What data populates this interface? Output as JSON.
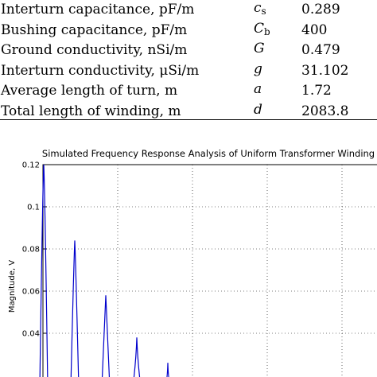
{
  "table": {
    "rows": [
      {
        "label": "Interturn capacitance, pF/m",
        "symbol": "c",
        "subscript": "s",
        "value": "0.289"
      },
      {
        "label": "Bushing capacitance, pF/m",
        "symbol": "C",
        "subscript": "b",
        "value": "400"
      },
      {
        "label": "Ground conductivity, nSi/m",
        "symbol": "G",
        "subscript": "",
        "value": "0.479"
      },
      {
        "label": "Interturn conductivity, μSi/m",
        "symbol": "g",
        "subscript": "",
        "value": "31.102"
      },
      {
        "label": "Average length of turn, m",
        "symbol": "a",
        "subscript": "",
        "value": "1.72"
      },
      {
        "label": "Total length of winding, m",
        "symbol": "d",
        "subscript": "",
        "value": "2083.8"
      }
    ]
  },
  "chart_data": {
    "type": "line",
    "title": "Simulated Frequency Response Analysis of Uniform Transformer Winding",
    "xlabel": "",
    "ylabel": "Magnitude, V",
    "ylim": [
      0.02,
      0.12
    ],
    "yticks": [
      "0.12",
      "0.1",
      "0.08",
      "0.06",
      "0.04"
    ],
    "grid": true,
    "line_color": "#0000cc",
    "series": [
      {
        "values": [
          {
            "peak": 0.123,
            "width": 1.0
          },
          {
            "peak": 0.084,
            "width": 0.9
          },
          {
            "peak": 0.058,
            "width": 0.8
          },
          {
            "peak": 0.038,
            "width": 0.7
          },
          {
            "peak": 0.026,
            "width": 0.6
          }
        ]
      }
    ]
  }
}
